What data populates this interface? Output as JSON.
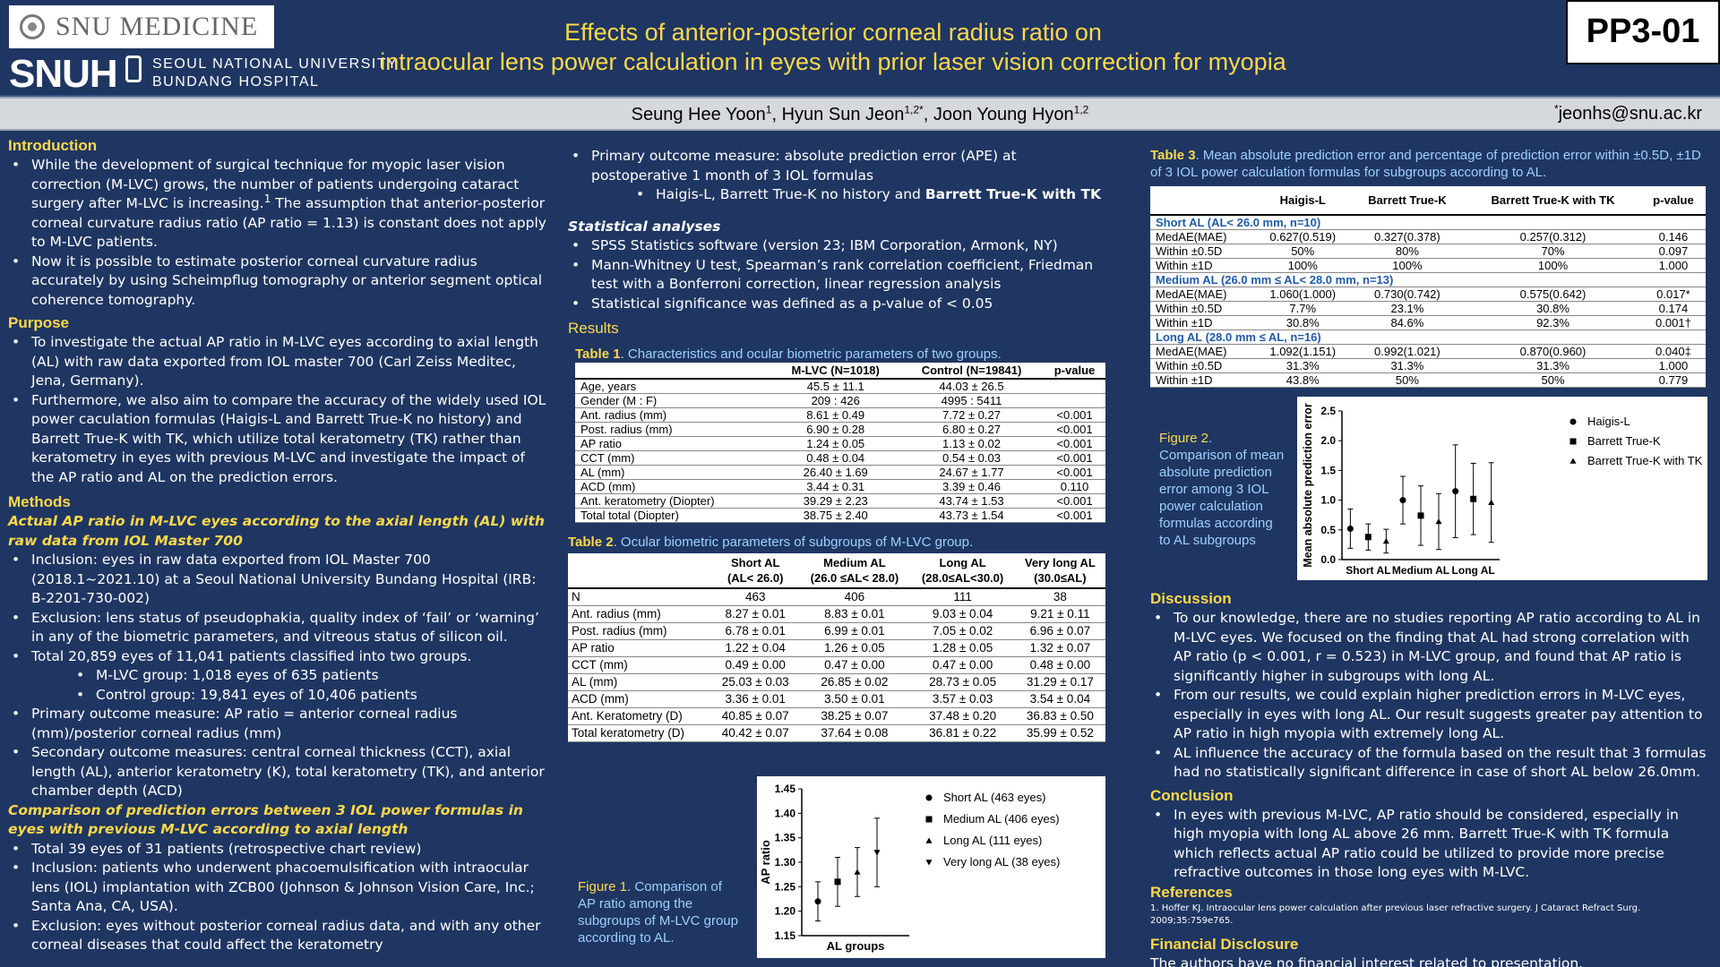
{
  "header": {
    "logo_top": "SNU MEDICINE",
    "logo_snuh": "SNUH",
    "logo_hospital_line1": "SEOUL NATIONAL UNIVERSITY",
    "logo_hospital_line2": "BUNDANG HOSPITAL",
    "title_line1": "Effects of anterior-posterior corneal radius ratio on",
    "title_line2": "intraocular lens power calculation in eyes with prior laser vision correction for myopia",
    "poster_code": "PP3-01"
  },
  "authors": {
    "a1": "Seung Hee Yoon",
    "a1_sup": "1",
    "a2": "Hyun Sun Jeon",
    "a2_sup": "1,2*",
    "a3": "Joon Young Hyon",
    "a3_sup": "1,2",
    "email_sup": "*",
    "email": "jeonhs@snu.ac.kr"
  },
  "intro": {
    "heading": "Introduction",
    "b1": "While the development of surgical technique for myopic laser vision correction (M-LVC) grows, the number of patients undergoing cataract surgery after M-LVC is increasing.",
    "b1_sup": "1",
    "b1_tail": " The assumption that anterior-posterior corneal curvature radius ratio (AP ratio = 1.13) is constant does not apply to M-LVC patients.",
    "b2": "Now it is possible to estimate posterior corneal curvature radius accurately by using Scheimpflug tomography or anterior segment optical coherence tomography."
  },
  "purpose": {
    "heading": "Purpose",
    "b1": "To investigate the actual AP ratio in M-LVC eyes according to axial length (AL) with raw data exported from IOL master 700 (Carl Zeiss Meditec, Jena, Germany).",
    "b2": "Furthermore, we also aim to compare the accuracy of the widely used IOL power caculation formulas (Haigis-L and Barrett True-K no history) and Barrett True-K with TK, which utilize total keratometry (TK) rather than keratometry in eyes with previous M-LVC and investigate the impact of the AP ratio and AL on the prediction errors."
  },
  "methods": {
    "heading": "Methods",
    "sub1": "Actual AP ratio in M-LVC eyes according to the axial length (AL) with raw data from IOL Master 700",
    "m1": "Inclusion: eyes in raw data exported from IOL Master 700 (2018.1~2021.10) at a Seoul National University Bundang Hospital (IRB: B-2201-730-002)",
    "m2": "Exclusion: lens status of pseudophakia, quality index of ‘fail’ or ‘warning’ in any of the biometric parameters, and vitreous status of silicon oil.",
    "m3": "Total 20,859 eyes of 11,041 patients  classified into two groups.",
    "m3a": "M-LVC group: 1,018 eyes of 635 patients",
    "m3b": "Control group: 19,841 eyes of 10,406 patients",
    "m4": "Primary outcome measure: AP ratio = anterior corneal radius (mm)/posterior corneal radius (mm)",
    "m5": "Secondary outcome measures: central corneal thickness (CCT), axial length (AL), anterior keratometry (K), total keratometry (TK), and anterior chamber depth (ACD)",
    "sub2": "Comparison of prediction errors between 3 IOL power formulas in eyes with previous M-LVC according to axial length",
    "n1": "Total 39 eyes of 31 patients (retrospective chart review)",
    "n2": "Inclusion: patients who underwent phacoemulsification with intraocular lens (IOL) implantation with ZCB00 (Johnson & Johnson Vision Care, Inc.; Santa Ana, CA, USA).",
    "n3": "Exclusion: eyes without posterior corneal radius data, and with any other corneal diseases that could affect the keratometry",
    "p1": "Primary outcome measure: absolute prediction error (APE) at postoperative 1 month of 3 IOL formulas",
    "p1a": "Haigis-L, Barrett True-K no history and ",
    "p1a_bold": "Barrett True-K with TK",
    "stat_heading": "Statistical analyses",
    "s1": "SPSS Statistics software (version 23; IBM Corporation, Armonk, NY)",
    "s2": "Mann-Whitney U test, Spearman’s rank correlation coefficient, Friedman test with a Bonferroni correction, linear regression analysis",
    "s3": "Statistical significance was defined as a p-value of < 0.05"
  },
  "results": {
    "heading": "Results",
    "table1": {
      "cap_label": "Table 1",
      "cap_text": ". Characteristics and ocular biometric parameters of two groups.",
      "headers": [
        "",
        "M-LVC (N=1018)",
        "Control (N=19841)",
        "p-value"
      ],
      "rows": [
        [
          "Age, years",
          "45.5 ± 11.1",
          "44.03 ± 26.5",
          ""
        ],
        [
          "Gender (M : F)",
          "209 : 426",
          "4995 : 5411",
          ""
        ],
        [
          "Ant. radius (mm)",
          "8.61 ± 0.49",
          "7.72 ± 0.27",
          "<0.001"
        ],
        [
          "Post. radius (mm)",
          "6.90 ± 0.28",
          "6.80 ± 0.27",
          "<0.001"
        ],
        [
          "AP ratio",
          "1.24 ± 0.05",
          "1.13 ± 0.02",
          "<0.001"
        ],
        [
          "CCT (mm)",
          "0.48 ± 0.04",
          "0.54 ± 0.03",
          "<0.001"
        ],
        [
          "AL (mm)",
          "26.40 ± 1.69",
          "24.67 ± 1.77",
          "<0.001"
        ],
        [
          "ACD (mm)",
          "3.44 ± 0.31",
          "3.39 ± 0.46",
          "0.110"
        ],
        [
          "Ant. keratometry (Diopter)",
          "39.29 ± 2.23",
          "43.74 ± 1.53",
          "<0.001"
        ],
        [
          "Total total (Diopter)",
          "38.75 ± 2.40",
          "43.73 ± 1.54",
          "<0.001"
        ]
      ]
    },
    "table2": {
      "cap_label": "Table 2",
      "cap_text": ". Ocular biometric parameters of subgroups of M-LVC group.",
      "headers": [
        [
          "",
          ""
        ],
        [
          "Short AL",
          "(AL< 26.0)"
        ],
        [
          "Medium AL",
          "(26.0 ≤AL< 28.0)"
        ],
        [
          "Long AL",
          "(28.0≤AL<30.0)"
        ],
        [
          "Very long AL",
          "(30.0≤AL)"
        ]
      ],
      "rows": [
        [
          "N",
          "463",
          "406",
          "111",
          "38"
        ],
        [
          "Ant. radius (mm)",
          "8.27 ± 0.01",
          "8.83 ± 0.01",
          "9.03 ± 0.04",
          "9.21 ± 0.11"
        ],
        [
          "Post. radius (mm)",
          "6.78 ± 0.01",
          "6.99 ± 0.01",
          "7.05 ± 0.02",
          "6.96 ± 0.07"
        ],
        [
          "AP ratio",
          "1.22 ± 0.04",
          "1.26 ± 0.05",
          "1.28 ± 0.05",
          "1.32 ± 0.07"
        ],
        [
          "CCT (mm)",
          "0.49 ± 0.00",
          "0.47 ± 0.00",
          "0.47 ± 0.00",
          "0.48 ± 0.00"
        ],
        [
          "AL (mm)",
          "25.03 ± 0.03",
          "26.85 ± 0.02",
          "28.73 ± 0.05",
          "31.29 ± 0.17"
        ],
        [
          "ACD (mm)",
          "3.36 ± 0.01",
          "3.50 ± 0.01",
          "3.57 ± 0.03",
          "3.54 ± 0.04"
        ],
        [
          "Ant. Keratometry (D)",
          "40.85 ± 0.07",
          "38.25 ± 0.07",
          "37.48 ± 0.20",
          "36.83 ± 0.50"
        ],
        [
          "Total keratometry (D)",
          "40.42 ± 0.07",
          "37.64 ± 0.08",
          "36.81 ± 0.22",
          "35.99 ± 0.52"
        ]
      ]
    },
    "table3": {
      "cap_label": "Table 3",
      "cap_text": ". Mean absolute prediction error and percentage of prediction error within ±0.5D, ±1D of 3 IOL power calculation formulas for subgroups according to AL.",
      "headers": [
        "",
        "Haigis-L",
        "Barrett True-K",
        "Barrett True-K with TK",
        "p-value"
      ],
      "groups": [
        {
          "label": "Short AL (AL< 26.0 mm, n=10)",
          "rows": [
            [
              "MedAE(MAE)",
              "0.627(0.519)",
              "0.327(0.378)",
              "0.257(0.312)",
              "0.146"
            ],
            [
              "Within ±0.5D",
              "50%",
              "80%",
              "70%",
              "0.097"
            ],
            [
              "Within ±1D",
              "100%",
              "100%",
              "100%",
              "1.000"
            ]
          ]
        },
        {
          "label": "Medium AL (26.0 mm ≤ AL< 28.0 mm, n=13)",
          "rows": [
            [
              "MedAE(MAE)",
              "1.060(1.000)",
              "0.730(0.742)",
              "0.575(0.642)",
              "0.017*"
            ],
            [
              "Within ±0.5D",
              "7.7%",
              "23.1%",
              "30.8%",
              "0.174"
            ],
            [
              "Within ±1D",
              "30.8%",
              "84.6%",
              "92.3%",
              "0.001†"
            ]
          ]
        },
        {
          "label": "Long AL (28.0 mm ≤ AL, n=16)",
          "rows": [
            [
              "MedAE(MAE)",
              "1.092(1.151)",
              "0.992(1.021)",
              "0.870(0.960)",
              "0.040‡"
            ],
            [
              "Within ±0.5D",
              "31.3%",
              "31.3%",
              "31.3%",
              "1.000"
            ],
            [
              "Within ±1D",
              "43.8%",
              "50%",
              "50%",
              "0.779"
            ]
          ]
        }
      ]
    },
    "figure1_caption_label": "Figure 1",
    "figure1_caption": ". Comparison of AP ratio among the subgroups of M-LVC group according to AL.",
    "figure2_caption_label": "Figure 2",
    "figure2_caption": ". Comparison of mean absolute prediction error among 3 IOL power calculation formulas according to AL subgroups"
  },
  "discussion": {
    "heading": "Discussion",
    "b1": "To our knowledge, there are no studies reporting AP ratio according to AL in M-LVC eyes. We focused on the finding that AL had strong correlation with AP ratio (p < 0.001, r = 0.523) in M-LVC group, and found that AP ratio is significantly higher in subgroups with long AL.",
    "b2": "From our results, we could explain higher prediction errors in M-LVC eyes, especially in eyes with long AL. Our result suggests greater pay attention to AP ratio in high myopia with extremely long AL.",
    "b3": "AL influence the accuracy of the formula based on the result that 3 formulas had no statistically significant difference in case of short AL below 26.0mm."
  },
  "conclusion": {
    "heading": "Conclusion",
    "b1": "In eyes with previous M-LVC, AP ratio should be considered, especially in high myopia with long AL above 26 mm. Barrett True-K with TK formula which reflects actual AP ratio could be utilized to provide more precise refractive outcomes in those long eyes with M-LVC."
  },
  "references": {
    "heading": "References",
    "r1": "1. Hoffer KJ. Intraocular lens power calculation after previous laser refractive surgery. J Cataract Refract Surg. 2009;35:759e765."
  },
  "financial": {
    "heading": "Financial Disclosure",
    "text": "The authors have no financial interest related to presentation."
  },
  "chart_data": [
    {
      "type": "scatter",
      "title": "",
      "xlabel": "AL groups",
      "ylabel": "AP ratio",
      "ylim": [
        1.15,
        1.45
      ],
      "yticks": [
        "1.15",
        "1.20",
        "1.25",
        "1.30",
        "1.35",
        "1.40",
        "1.45"
      ],
      "error_bars": true,
      "legend_position": "right",
      "series": [
        {
          "name": "Short AL (463 eyes)",
          "marker": "circle",
          "x": 1,
          "y": 1.22,
          "err": 0.04
        },
        {
          "name": "Medium AL (406 eyes)",
          "marker": "square",
          "x": 2,
          "y": 1.26,
          "err": 0.05
        },
        {
          "name": "Long AL (111 eyes)",
          "marker": "triangle-up",
          "x": 3,
          "y": 1.28,
          "err": 0.05
        },
        {
          "name": "Very long AL (38 eyes)",
          "marker": "triangle-down",
          "x": 4,
          "y": 1.32,
          "err": 0.07
        }
      ]
    },
    {
      "type": "scatter",
      "title": "",
      "xlabel": "",
      "ylabel": "Mean absolute prediction error",
      "ylim": [
        0.0,
        2.5
      ],
      "yticks": [
        "0.0",
        "0.5",
        "1.0",
        "1.5",
        "2.0",
        "2.5"
      ],
      "categories": [
        "Short AL",
        "Medium AL",
        "Long AL"
      ],
      "error_bars": true,
      "legend_position": "top-right",
      "series": [
        {
          "name": "Haigis-L",
          "marker": "circle",
          "values": [
            0.52,
            1.0,
            1.15
          ],
          "err": [
            0.33,
            0.4,
            0.78
          ]
        },
        {
          "name": "Barrett True-K",
          "marker": "square",
          "values": [
            0.38,
            0.74,
            1.02
          ],
          "err": [
            0.22,
            0.5,
            0.6
          ]
        },
        {
          "name": "Barrett True-K with TK",
          "marker": "triangle-up",
          "values": [
            0.31,
            0.64,
            0.96
          ],
          "err": [
            0.2,
            0.47,
            0.67
          ]
        }
      ]
    }
  ]
}
